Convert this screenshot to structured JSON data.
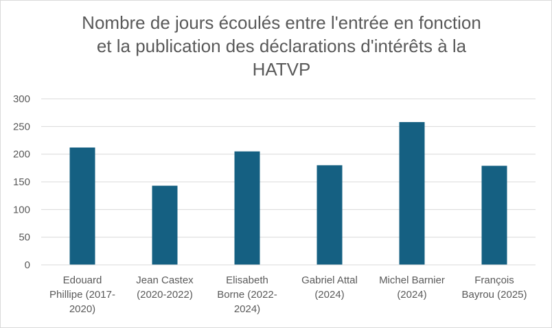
{
  "chart_data": {
    "type": "bar",
    "title_lines": [
      "Nombre de jours écoulés entre l'entrée en fonction",
      "et la publication des déclarations d'intérêts à la",
      "HATVP"
    ],
    "categories": [
      [
        "Edouard",
        "Phillipe  (2017-",
        "2020)"
      ],
      [
        "Jean Castex",
        "(2020-2022)"
      ],
      [
        "Elisabeth",
        "Borne (2022-",
        "2024)"
      ],
      [
        "Gabriel Attal",
        "(2024)"
      ],
      [
        "Michel Barnier",
        "(2024)"
      ],
      [
        "François",
        "Bayrou (2025)"
      ]
    ],
    "values": [
      212,
      143,
      205,
      180,
      258,
      179
    ],
    "ylim": [
      0,
      300
    ],
    "yticks": [
      0,
      50,
      100,
      150,
      200,
      250,
      300
    ],
    "grid": true,
    "legend": "none",
    "bar_color": "#156082",
    "grid_color": "#d9d9d9"
  }
}
